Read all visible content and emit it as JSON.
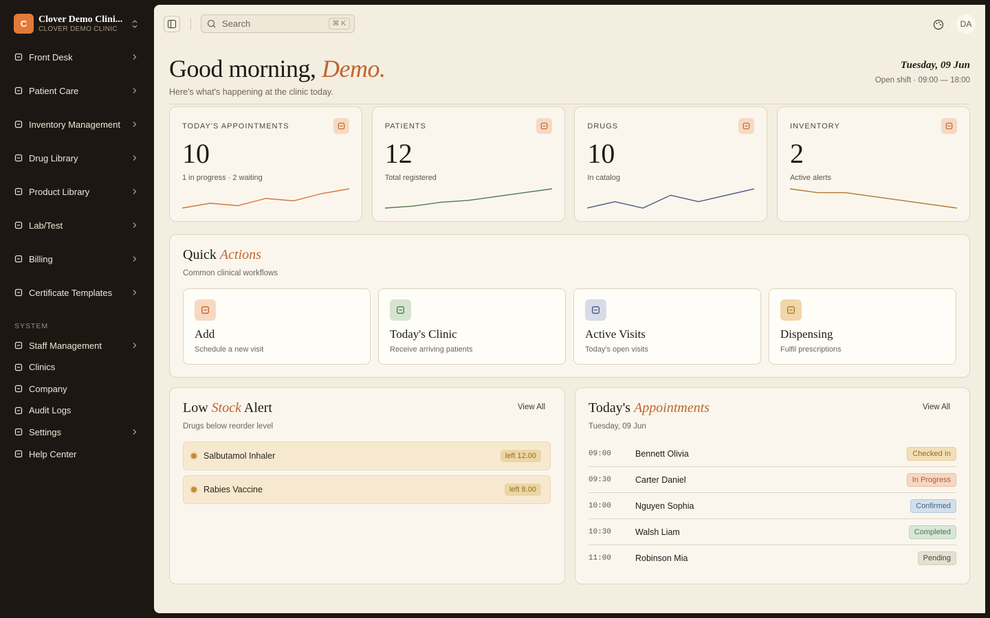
{
  "sidebar": {
    "brand": {
      "initial": "C",
      "name": "Clover Demo Clini...",
      "sub": "CLOVER DEMO CLINIC"
    },
    "nav": [
      {
        "label": "Front Desk",
        "expandable": true
      },
      {
        "label": "Patient Care",
        "expandable": true
      },
      {
        "label": "Inventory Management",
        "expandable": true
      },
      {
        "label": "Drug Library",
        "expandable": true
      },
      {
        "label": "Product Library",
        "expandable": true
      },
      {
        "label": "Lab/Test",
        "expandable": true
      },
      {
        "label": "Billing",
        "expandable": true
      },
      {
        "label": "Certificate Templates",
        "expandable": true
      }
    ],
    "section": "SYSTEM",
    "system": [
      {
        "label": "Staff Management",
        "expandable": true
      },
      {
        "label": "Clinics",
        "expandable": false
      },
      {
        "label": "Company",
        "expandable": false
      },
      {
        "label": "Audit Logs",
        "expandable": false
      },
      {
        "label": "Settings",
        "expandable": true
      },
      {
        "label": "Help Center",
        "expandable": false
      }
    ]
  },
  "topbar": {
    "search": "Search",
    "shortcut": "⌘ K",
    "avatar": "DA"
  },
  "greeting": {
    "hello": "Good morning,",
    "name": "Demo.",
    "subtitle": "Here's what's happening at the clinic today.",
    "date": "Tuesday, 09 Jun",
    "shift": "Open shift · 09:00 — 18:00"
  },
  "stats": [
    {
      "label": "TODAY'S APPOINTMENTS",
      "value": 10,
      "note": "1 in progress · 2 waiting",
      "color": "#d9733a",
      "spark": [
        2,
        4,
        3,
        6,
        5,
        8,
        10
      ]
    },
    {
      "label": "PATIENTS",
      "value": 12,
      "note": "Total registered",
      "color": "#4f7a4f",
      "spark": [
        1,
        2,
        4,
        5,
        7,
        9,
        11
      ]
    },
    {
      "label": "DRUGS",
      "value": 10,
      "note": "In catalog",
      "color": "#4a5580",
      "spark": [
        2,
        5,
        2,
        8,
        5,
        8,
        11
      ]
    },
    {
      "label": "INVENTORY",
      "value": 2,
      "note": "Active alerts",
      "color": "#b07a2a",
      "spark": [
        10,
        8,
        8,
        6,
        4,
        2,
        0
      ]
    }
  ],
  "quick": {
    "title": "Quick",
    "accent": "Actions",
    "subtitle": "Common clinical workflows",
    "actions": [
      {
        "title": "Add",
        "desc": "Schedule a new visit",
        "tone": "orange"
      },
      {
        "title": "Today's Clinic",
        "desc": "Receive arriving patients",
        "tone": "green"
      },
      {
        "title": "Active Visits",
        "desc": "Today's open visits",
        "tone": "blue"
      },
      {
        "title": "Dispensing",
        "desc": "Fulfil prescriptions",
        "tone": "amber"
      }
    ]
  },
  "low_stock": {
    "title": "Low",
    "accent": "Stock",
    "title_end": "Alert",
    "link": "View All",
    "subtitle": "Drugs below reorder level",
    "items": [
      {
        "name": "Salbutamol Inhaler",
        "left": "left 12.00"
      },
      {
        "name": "Rabies Vaccine",
        "left": "left 8.00"
      }
    ]
  },
  "appointments": {
    "title": "Today's",
    "accent": "Appointments",
    "link": "View All",
    "date": "Tuesday, 09 Jun",
    "rows": [
      {
        "time": "09:00",
        "name": "Bennett Olivia",
        "status": "Checked In",
        "tone": "amber"
      },
      {
        "time": "09:30",
        "name": "Carter Daniel",
        "status": "In Progress",
        "tone": "orange"
      },
      {
        "time": "10:00",
        "name": "Nguyen Sophia",
        "status": "Confirmed",
        "tone": "blue"
      },
      {
        "time": "10:30",
        "name": "Walsh Liam",
        "status": "Completed",
        "tone": "green"
      },
      {
        "time": "11:00",
        "name": "Robinson Mia",
        "status": "Pending",
        "tone": "gray"
      }
    ]
  }
}
